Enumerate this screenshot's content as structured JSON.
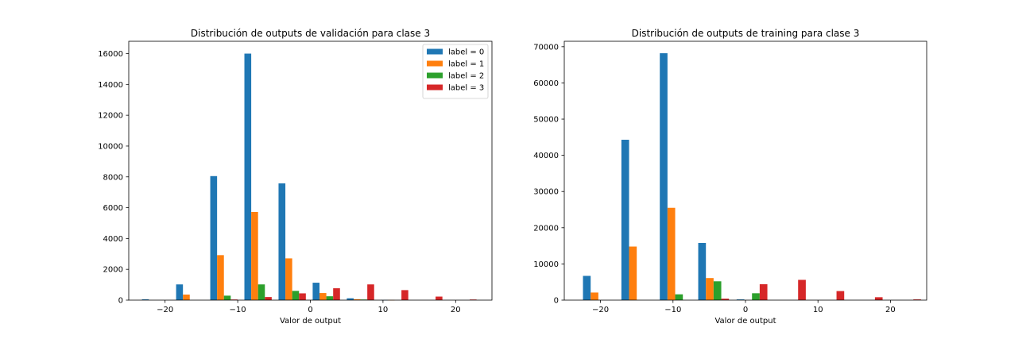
{
  "chart_data": [
    {
      "type": "bar",
      "title": "Distribución de outputs de validación para clase 3",
      "xlabel": "Valor de output",
      "ylabel": "",
      "xlim": [
        -25,
        25
      ],
      "ylim": [
        0,
        16800
      ],
      "xticks": [
        -20,
        -10,
        0,
        10,
        20
      ],
      "yticks": [
        0,
        2000,
        4000,
        6000,
        8000,
        10000,
        12000,
        14000,
        16000
      ],
      "legend_position": "top-right",
      "bin_centers": [
        -21.3,
        -16.6,
        -11.9,
        -7.2,
        -2.5,
        2.2,
        6.9,
        11.6,
        16.3,
        21.0
      ],
      "bar_width": 0.94,
      "series": [
        {
          "name": "label = 0",
          "color": "#1f77b4",
          "values": [
            50,
            1020,
            8050,
            16000,
            7580,
            1130,
            120,
            10,
            0,
            0
          ]
        },
        {
          "name": "label = 1",
          "color": "#ff7f0e",
          "values": [
            0,
            360,
            2920,
            5720,
            2710,
            460,
            60,
            10,
            0,
            0
          ]
        },
        {
          "name": "label = 2",
          "color": "#2ca02c",
          "values": [
            0,
            0,
            290,
            1020,
            600,
            250,
            40,
            0,
            0,
            0
          ]
        },
        {
          "name": "label = 3",
          "color": "#d62728",
          "values": [
            0,
            0,
            40,
            200,
            440,
            770,
            1020,
            650,
            230,
            40
          ]
        }
      ]
    },
    {
      "type": "bar",
      "title": "Distribución de outputs de training para clase 3",
      "xlabel": "Valor de output",
      "ylabel": "",
      "xlim": [
        -25,
        25
      ],
      "ylim": [
        0,
        71500
      ],
      "xticks": [
        -20,
        -10,
        0,
        10,
        20
      ],
      "yticks": [
        0,
        10000,
        20000,
        30000,
        40000,
        50000,
        60000,
        70000
      ],
      "bin_centers": [
        -20.3,
        -15.0,
        -9.7,
        -4.4,
        0.9,
        6.2,
        11.5,
        16.8,
        22.1
      ],
      "bar_width": 1.06,
      "series": [
        {
          "name": "label = 0",
          "color": "#1f77b4",
          "values": [
            6700,
            44300,
            68200,
            15800,
            200,
            0,
            0,
            0,
            0
          ]
        },
        {
          "name": "label = 1",
          "color": "#ff7f0e",
          "values": [
            2100,
            14800,
            25500,
            6100,
            0,
            0,
            0,
            0,
            0
          ]
        },
        {
          "name": "label = 2",
          "color": "#2ca02c",
          "values": [
            0,
            0,
            1600,
            5200,
            1900,
            0,
            0,
            0,
            0
          ]
        },
        {
          "name": "label = 3",
          "color": "#d62728",
          "values": [
            0,
            0,
            0,
            400,
            4400,
            5600,
            2500,
            800,
            200
          ]
        }
      ]
    }
  ]
}
